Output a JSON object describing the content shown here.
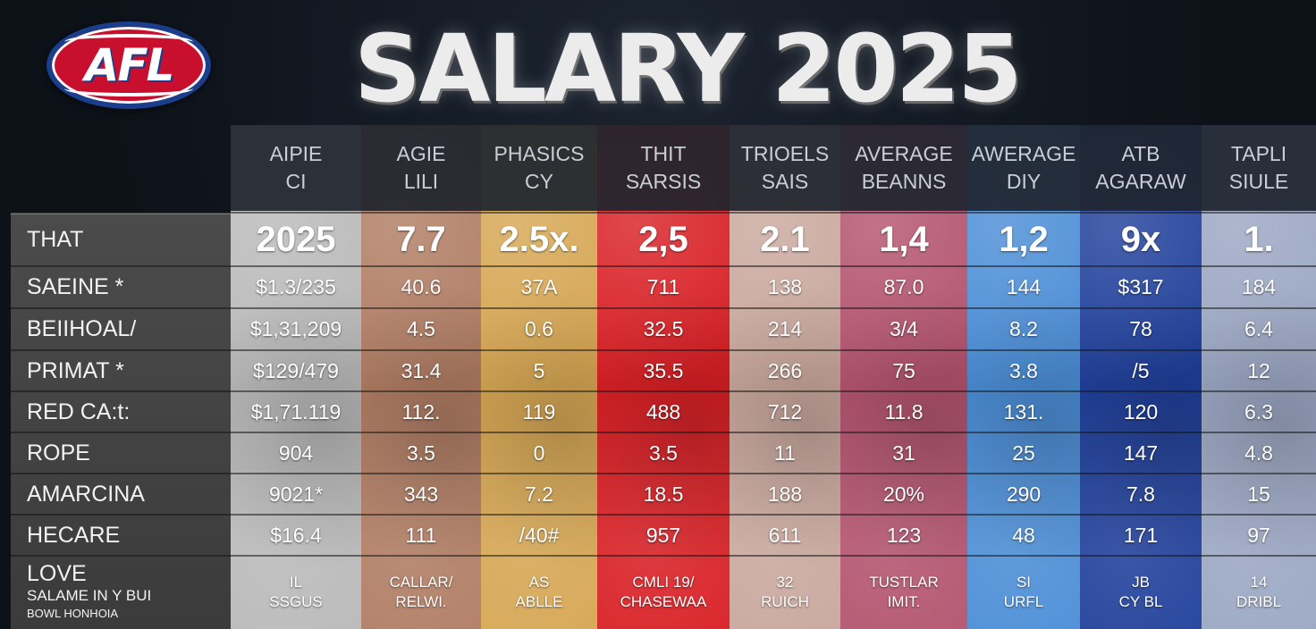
{
  "logo": {
    "text": "AFL"
  },
  "title": "SALARY 2025",
  "colors": {
    "col_1": "#b9b9b9",
    "col_2": "#b07c62",
    "col_3": "#d6a652",
    "col_4": "#d81f24",
    "col_5": "#c9a79c",
    "col_6": "#b3536e",
    "col_7": "#4a8dd6",
    "col_8": "#1f3f9a",
    "col_9": "#9aa6c2"
  },
  "columns": [
    {
      "header": [
        "AIPIE",
        "CI"
      ]
    },
    {
      "header": [
        "AGIE",
        "LILI"
      ]
    },
    {
      "header": [
        "PHASICS",
        "CY"
      ]
    },
    {
      "header": [
        "THIT",
        "SARSIS"
      ]
    },
    {
      "header": [
        "TRIOELS",
        "SAIS"
      ]
    },
    {
      "header": [
        "AVERAGE",
        "BEANNS"
      ]
    },
    {
      "header": [
        "AWERAGE",
        "DIY"
      ]
    },
    {
      "header": [
        "ATB",
        "AGARAW"
      ]
    },
    {
      "header": [
        "TAPLI",
        "SIULE"
      ]
    }
  ],
  "rows": [
    {
      "label": "THAT",
      "values": [
        "2025",
        "7.7",
        "2.5x.",
        "2,5",
        "2.1",
        "1,4",
        "1,2",
        "9x",
        "1."
      ]
    },
    {
      "label": "SAEINE *",
      "values": [
        "$1.3/235",
        "40.6",
        "37A",
        "711",
        "138",
        "87.0",
        "144",
        "$317",
        "184"
      ]
    },
    {
      "label": "BEIIHOAL/",
      "values": [
        "$1,31,209",
        "4.5",
        "0.6",
        "32.5",
        "214",
        "3/4",
        "8.2",
        "78",
        "6.4"
      ]
    },
    {
      "label": "PRIMAT *",
      "values": [
        "$129/479",
        "31.4",
        "5",
        "35.5",
        "266",
        "75",
        "3.8",
        "/5",
        "12"
      ]
    },
    {
      "label": "RED CA:t:",
      "values": [
        "$1,71.119",
        "112.",
        "119",
        "488",
        "712",
        "11.8",
        "131.",
        "120",
        "6.3"
      ]
    },
    {
      "label": "ROPE",
      "values": [
        "904",
        "3.5",
        "0",
        "3.5",
        "11",
        "31",
        "25",
        "147",
        "4.8"
      ]
    },
    {
      "label": "AMARCINA",
      "values": [
        "9021*",
        "343",
        "7.2",
        "18.5",
        "188",
        "20%",
        "290",
        "7.8",
        "15"
      ]
    },
    {
      "label": "HECARE",
      "values": [
        "$16.4",
        "111",
        "/40#",
        "957",
        "611",
        "123",
        "48",
        "171",
        "97"
      ]
    }
  ],
  "last_row": {
    "label_lines": [
      "LOVE",
      "SALAME IN Y BUI",
      "BOWL HONHOIA"
    ],
    "values": [
      [
        "IL",
        "SSGUS"
      ],
      [
        "CALLAR/",
        "RELWI."
      ],
      [
        "AS",
        "ABLLE"
      ],
      [
        "CMLI 19/",
        "CHASEWAA"
      ],
      [
        "32",
        "RUICH"
      ],
      [
        "TUSTLAR",
        "IMIT."
      ],
      [
        "SI",
        "URFL"
      ],
      [
        "JB",
        "CY BL"
      ],
      [
        "14",
        "DRIBL"
      ]
    ]
  }
}
